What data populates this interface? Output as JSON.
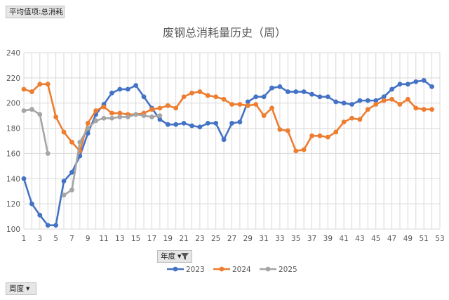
{
  "pivot": {
    "value_field": "平均值项:总消耗",
    "legend_field": "年度",
    "axis_field": "周度"
  },
  "chart_data": {
    "type": "line",
    "title": "废钢总消耗量历史（周）",
    "xlabel": "",
    "ylabel": "",
    "x_ticks": [
      1,
      3,
      5,
      7,
      9,
      11,
      13,
      15,
      17,
      19,
      21,
      23,
      25,
      27,
      29,
      31,
      33,
      35,
      37,
      39,
      41,
      43,
      45,
      47,
      49,
      51,
      53
    ],
    "y_ticks": [
      100,
      120,
      140,
      160,
      180,
      200,
      220,
      240
    ],
    "xlim": [
      1,
      53
    ],
    "ylim": [
      100,
      240
    ],
    "grid": "vertical and horizontal",
    "legend_position": "bottom",
    "series": [
      {
        "name": "2023",
        "color": "#4472c4",
        "x": [
          1,
          2,
          3,
          4,
          5,
          6,
          7,
          8,
          9,
          10,
          11,
          12,
          13,
          14,
          15,
          16,
          17,
          18,
          19,
          20,
          21,
          22,
          23,
          24,
          25,
          26,
          27,
          28,
          29,
          30,
          31,
          32,
          33,
          34,
          35,
          36,
          37,
          38,
          39,
          40,
          41,
          42,
          43,
          44,
          45,
          46,
          47,
          48,
          49,
          50,
          51,
          52
        ],
        "values": [
          140,
          120,
          111,
          103,
          103,
          138,
          145,
          158,
          176,
          191,
          199,
          208,
          211,
          211,
          214,
          205,
          196,
          187,
          183,
          183,
          184,
          182,
          181,
          184,
          184,
          171,
          184,
          185,
          201,
          205,
          205,
          212,
          213,
          209,
          209,
          209,
          207,
          205,
          205,
          201,
          200,
          199,
          202,
          202,
          202,
          205,
          211,
          215,
          215,
          217,
          218,
          213
        ]
      },
      {
        "name": "2024",
        "color": "#ed7d31",
        "x": [
          1,
          2,
          3,
          4,
          5,
          6,
          7,
          8,
          9,
          10,
          11,
          12,
          13,
          14,
          15,
          16,
          17,
          18,
          19,
          20,
          21,
          22,
          23,
          24,
          25,
          26,
          27,
          28,
          29,
          30,
          31,
          32,
          33,
          34,
          35,
          36,
          37,
          38,
          39,
          40,
          41,
          42,
          43,
          44,
          45,
          46,
          47,
          48,
          49,
          50,
          51,
          52
        ],
        "values": [
          211,
          209,
          215,
          215,
          189,
          177,
          169,
          162,
          184,
          194,
          197,
          192,
          192,
          191,
          191,
          192,
          195,
          196,
          198,
          196,
          205,
          208,
          209,
          206,
          205,
          203,
          199,
          199,
          198,
          199,
          190,
          196,
          179,
          178,
          162,
          163,
          174,
          174,
          173,
          177,
          185,
          188,
          187,
          195,
          199,
          202,
          203,
          199,
          203,
          196,
          195,
          195
        ]
      },
      {
        "name": "2025",
        "color": "#a5a5a5",
        "x": [
          1,
          2,
          3,
          4,
          6,
          7,
          8,
          9,
          10,
          11,
          12,
          13,
          14,
          15,
          16,
          17,
          18
        ],
        "values": [
          194,
          195,
          191,
          160,
          127,
          131,
          169,
          180,
          186,
          188,
          188,
          189,
          189,
          191,
          190,
          189,
          190
        ]
      }
    ]
  }
}
